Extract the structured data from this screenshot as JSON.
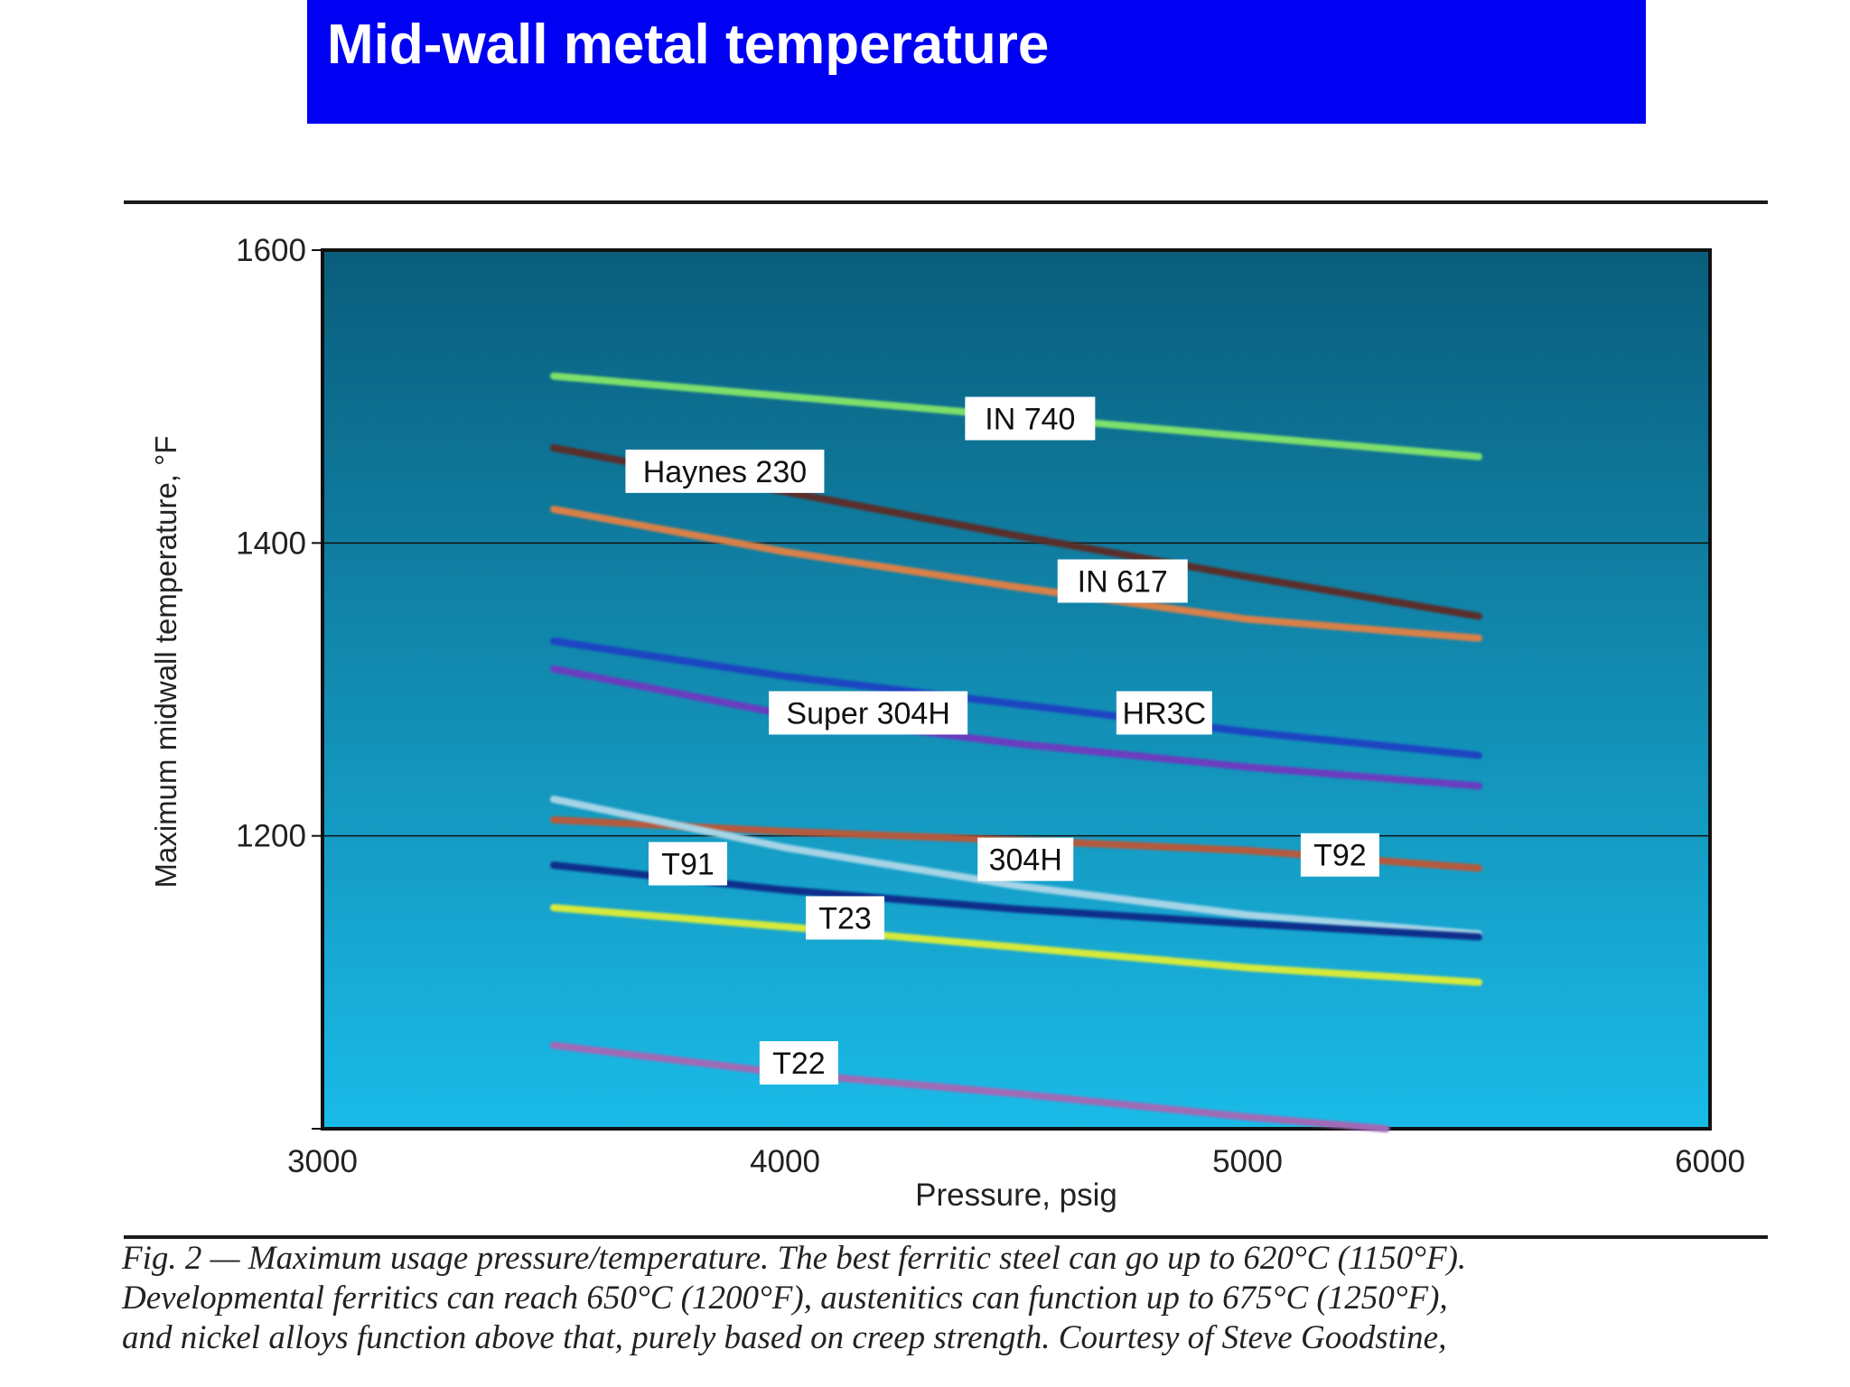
{
  "slide": {
    "title": "Mid-wall metal temperature"
  },
  "caption": {
    "lines": [
      "Fig. 2 — Maximum usage pressure/temperature. The best ferritic steel can go up to 620°C (1150°F).",
      "Developmental ferritics can reach 650°C (1200°F), austenitics can function up to 675°C (1250°F),",
      "and nickel alloys function above that, purely based on creep strength. Courtesy of Steve Goodstine,"
    ]
  },
  "chart_data": {
    "type": "line",
    "xlabel": "Pressure, psig",
    "ylabel": "Maximum midwall temperature, °F",
    "xlim": [
      3000,
      6000
    ],
    "ylim": [
      1000,
      1600
    ],
    "xticks": [
      3000,
      4000,
      5000,
      6000
    ],
    "yticks": [
      1200,
      1400,
      1600
    ],
    "grid": "horizontal",
    "background_gradient": [
      "#0a5d7c",
      "#1abbe8"
    ],
    "series": [
      {
        "name": "IN 740",
        "color": "#7ee06a",
        "label_pos": [
          4530,
          1485
        ],
        "x": [
          3500,
          5500
        ],
        "y": [
          1514,
          1459
        ]
      },
      {
        "name": "Haynes 230",
        "color": "#5a2e2a",
        "label_pos": [
          3870,
          1449
        ],
        "x": [
          3500,
          4000,
          4500,
          5000,
          5500
        ],
        "y": [
          1465,
          1435,
          1405,
          1377,
          1350
        ]
      },
      {
        "name": "IN 617",
        "color": "#d9804a",
        "label_pos": [
          4730,
          1374
        ],
        "x": [
          3500,
          4000,
          4500,
          5000,
          5500
        ],
        "y": [
          1423,
          1394,
          1370,
          1348,
          1335
        ]
      },
      {
        "name": "HR3C",
        "color": "#1f45c2",
        "label_pos": [
          4820,
          1284
        ],
        "x": [
          3500,
          4000,
          4500,
          5000,
          5500
        ],
        "y": [
          1333,
          1309,
          1290,
          1271,
          1255
        ]
      },
      {
        "name": "Super 304H",
        "color": "#6a3cbf",
        "label_pos": [
          4180,
          1284
        ],
        "x": [
          3500,
          4000,
          4500,
          5000,
          5500
        ],
        "y": [
          1314,
          1283,
          1263,
          1247,
          1234
        ]
      },
      {
        "name": "T92",
        "color": "#b55a3c",
        "label_pos": [
          5200,
          1187
        ],
        "x": [
          3500,
          4000,
          4500,
          5000,
          5500
        ],
        "y": [
          1211,
          1203,
          1197,
          1190,
          1178
        ]
      },
      {
        "name": "304H",
        "color": "#a6d4e6",
        "label_pos": [
          4520,
          1184
        ],
        "x": [
          3500,
          4000,
          4500,
          5000,
          5500
        ],
        "y": [
          1225,
          1192,
          1166,
          1146,
          1133
        ]
      },
      {
        "name": "T91",
        "color": "#0f2e8a",
        "label_pos": [
          3790,
          1181
        ],
        "x": [
          3500,
          4000,
          4500,
          5000,
          5500
        ],
        "y": [
          1180,
          1163,
          1150,
          1140,
          1131
        ]
      },
      {
        "name": "T23",
        "color": "#d6ea3a",
        "label_pos": [
          4130,
          1144
        ],
        "x": [
          3500,
          4000,
          4500,
          5000,
          5500
        ],
        "y": [
          1151,
          1138,
          1124,
          1110,
          1100
        ]
      },
      {
        "name": "T22",
        "color": "#a06ab6",
        "label_pos": [
          4030,
          1045
        ],
        "x": [
          3500,
          4000,
          4500,
          5000,
          5300
        ],
        "y": [
          1057,
          1038,
          1024,
          1008,
          1000
        ]
      }
    ]
  }
}
